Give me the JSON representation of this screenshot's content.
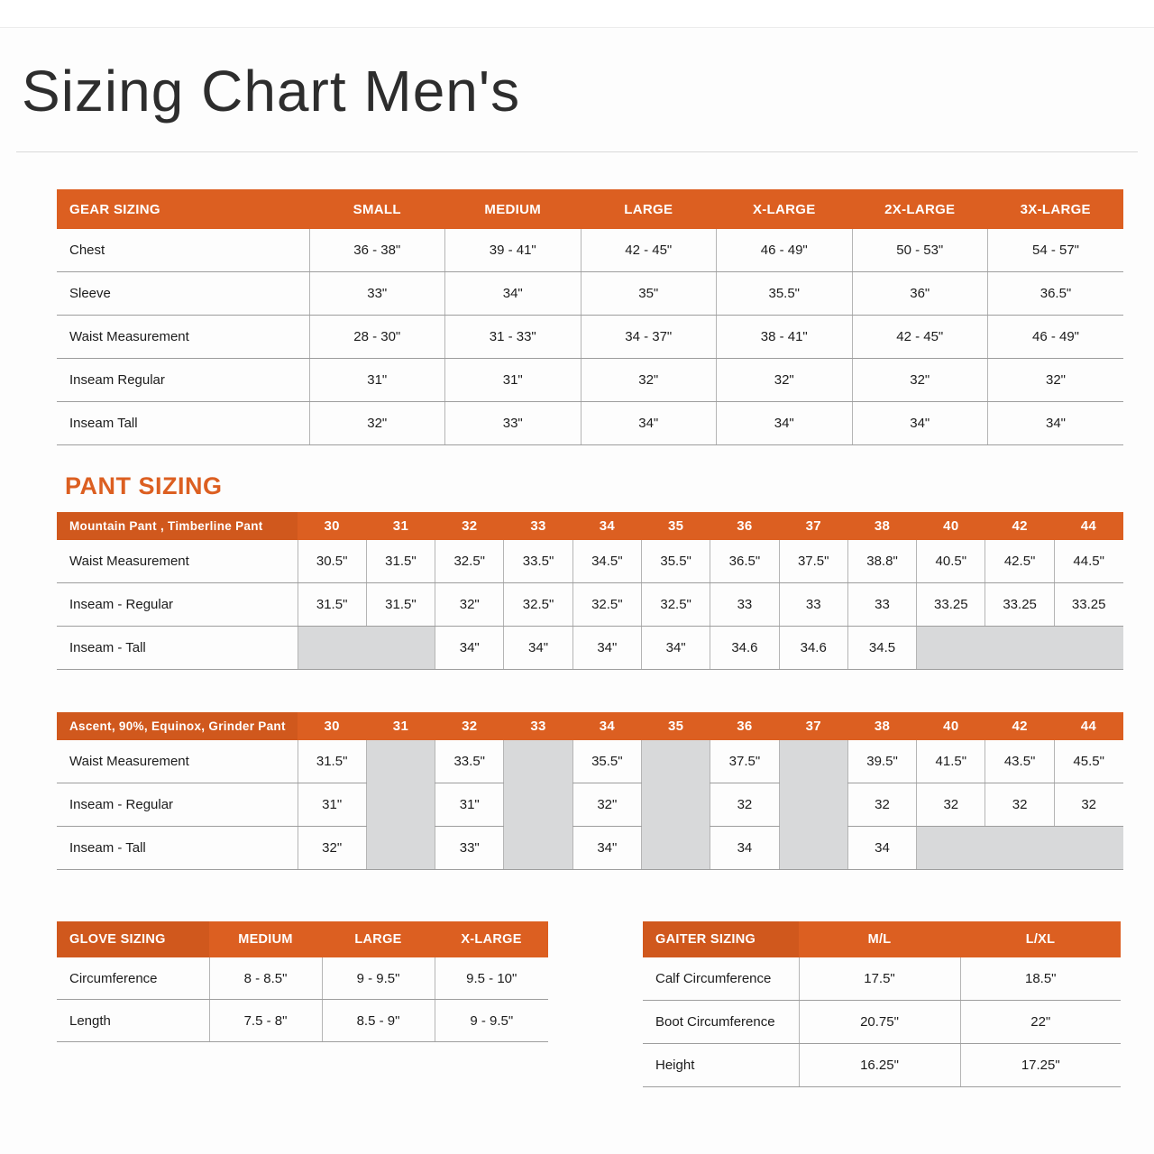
{
  "page": {
    "title": "Sizing Chart Men's"
  },
  "pant_section_title": "PANT SIZING",
  "colors": {
    "accent": "#DC5F21",
    "accent_dark": "#D0581D",
    "empty_cell": "#D8D9DA"
  },
  "gear_table": {
    "header": [
      "GEAR SIZING",
      "SMALL",
      "MEDIUM",
      "LARGE",
      "X-LARGE",
      "2X-LARGE",
      "3X-LARGE"
    ],
    "rows": [
      {
        "label": "Chest",
        "values": [
          "36 - 38\"",
          "39 - 41\"",
          "42 - 45\"",
          "46 - 49\"",
          "50 - 53\"",
          "54 - 57\""
        ]
      },
      {
        "label": "Sleeve",
        "values": [
          "33\"",
          "34\"",
          "35\"",
          "35.5\"",
          "36\"",
          "36.5\""
        ]
      },
      {
        "label": "Waist Measurement",
        "values": [
          "28 - 30\"",
          "31 - 33\"",
          "34 - 37\"",
          "38 - 41\"",
          "42 - 45\"",
          "46 - 49\""
        ]
      },
      {
        "label": "Inseam Regular",
        "values": [
          "31\"",
          "31\"",
          "32\"",
          "32\"",
          "32\"",
          "32\""
        ]
      },
      {
        "label": "Inseam Tall",
        "values": [
          "32\"",
          "33\"",
          "34\"",
          "34\"",
          "34\"",
          "34\""
        ]
      }
    ]
  },
  "pant_table_1": {
    "header": [
      "Mountain Pant , Timberline Pant",
      "30",
      "31",
      "32",
      "33",
      "34",
      "35",
      "36",
      "37",
      "38",
      "40",
      "42",
      "44"
    ],
    "rows": [
      {
        "label": "Waist Measurement",
        "values": [
          "30.5\"",
          "31.5\"",
          "32.5\"",
          "33.5\"",
          "34.5\"",
          "35.5\"",
          "36.5\"",
          "37.5\"",
          "38.8\"",
          "40.5\"",
          "42.5\"",
          "44.5\""
        ]
      },
      {
        "label": "Inseam - Regular",
        "values": [
          "31.5\"",
          "31.5\"",
          "32\"",
          "32.5\"",
          "32.5\"",
          "32.5\"",
          "33",
          "33",
          "33",
          "33.25",
          "33.25",
          "33.25"
        ]
      },
      {
        "label": "Inseam - Tall",
        "values": [
          "",
          "",
          "34\"",
          "34\"",
          "34\"",
          "34\"",
          "34.6",
          "34.6",
          "34.5",
          "",
          "",
          ""
        ]
      }
    ]
  },
  "pant_table_2": {
    "header": [
      "Ascent, 90%, Equinox, Grinder Pant",
      "30",
      "31",
      "32",
      "33",
      "34",
      "35",
      "36",
      "37",
      "38",
      "40",
      "42",
      "44"
    ],
    "rows": [
      {
        "label": "Waist Measurement",
        "values": [
          "31.5\"",
          "",
          "33.5\"",
          "",
          "35.5\"",
          "",
          "37.5\"",
          "",
          "39.5\"",
          "41.5\"",
          "43.5\"",
          "45.5\""
        ]
      },
      {
        "label": "Inseam - Regular",
        "values": [
          "31\"",
          "",
          "31\"",
          "",
          "32\"",
          "",
          "32",
          "",
          "32",
          "32",
          "32",
          "32"
        ]
      },
      {
        "label": "Inseam - Tall",
        "values": [
          "32\"",
          "",
          "33\"",
          "",
          "34\"",
          "",
          "34",
          "",
          "34",
          "",
          "",
          ""
        ]
      }
    ]
  },
  "glove_table": {
    "header": [
      "GLOVE SIZING",
      "MEDIUM",
      "LARGE",
      "X-LARGE"
    ],
    "rows": [
      {
        "label": "Circumference",
        "values": [
          "8 - 8.5\"",
          "9 - 9.5\"",
          "9.5 - 10\""
        ]
      },
      {
        "label": "Length",
        "values": [
          "7.5 - 8\"",
          "8.5 - 9\"",
          "9 - 9.5\""
        ]
      }
    ]
  },
  "gaiter_table": {
    "header": [
      "GAITER SIZING",
      "M/L",
      "L/XL"
    ],
    "rows": [
      {
        "label": "Calf Circumference",
        "values": [
          "17.5\"",
          "18.5\""
        ]
      },
      {
        "label": "Boot Circumference",
        "values": [
          "20.75\"",
          "22\""
        ]
      },
      {
        "label": "Height",
        "values": [
          "16.25\"",
          "17.25\""
        ]
      }
    ]
  }
}
